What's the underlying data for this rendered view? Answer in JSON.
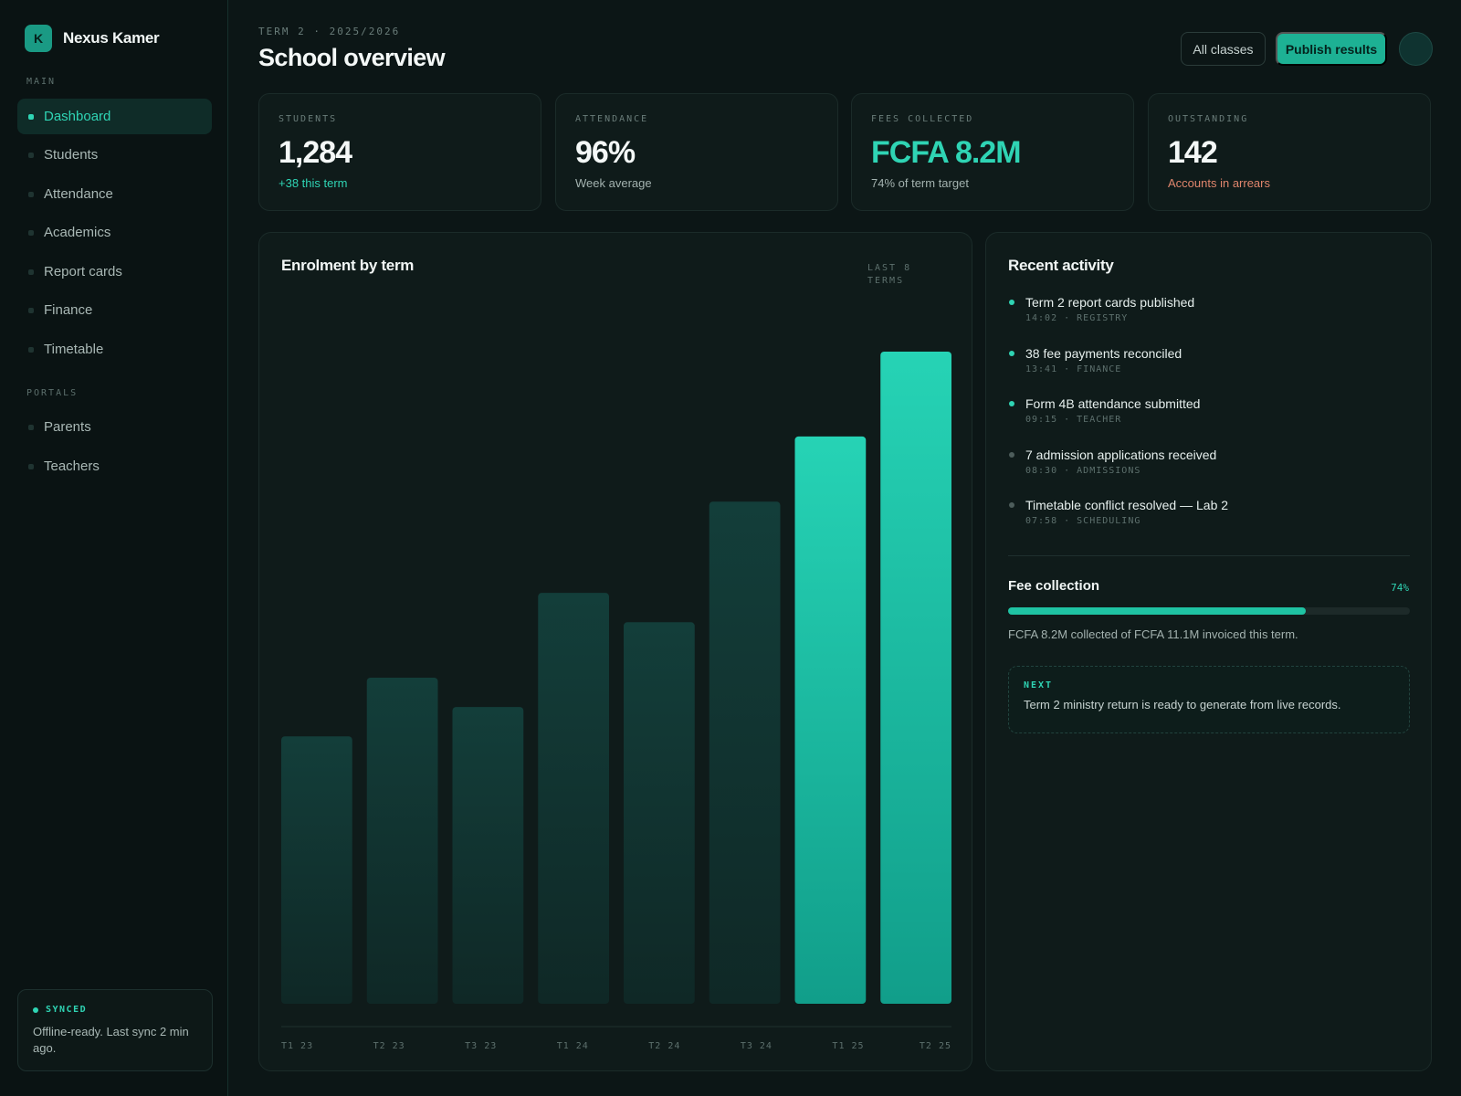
{
  "app": {
    "logo_letter": "K",
    "name": "Nexus Kamer"
  },
  "sidebar": {
    "sections": [
      {
        "title": "MAIN",
        "items": [
          "Dashboard",
          "Students",
          "Attendance",
          "Academics",
          "Report cards",
          "Finance",
          "Timetable"
        ]
      },
      {
        "title": "PORTALS",
        "items": [
          "Parents",
          "Teachers"
        ]
      }
    ],
    "active_item": "Dashboard",
    "sync": {
      "status": "SYNCED",
      "text": "Offline-ready. Last sync 2 min ago."
    }
  },
  "header": {
    "term": "TERM 2 · 2025/2026",
    "title": "School overview",
    "filter_button": "All classes",
    "primary_button": "Publish results"
  },
  "stats": [
    {
      "label": "STUDENTS",
      "value": "1,284",
      "sub": "+38 this term"
    },
    {
      "label": "ATTENDANCE",
      "value": "96%",
      "sub": "Week average"
    },
    {
      "label": "FEES COLLECTED",
      "value": "FCFA 8.2M",
      "sub": "74% of term target"
    },
    {
      "label": "OUTSTANDING",
      "value": "142",
      "sub": "Accounts in arrears"
    }
  ],
  "chart": {
    "title": "Enrolment by term",
    "range_label": "LAST 8 TERMS",
    "colors": {
      "muted": "#123b37",
      "highlight": "#22ccb0"
    }
  },
  "chart_data": {
    "type": "bar",
    "title": "Enrolment by term",
    "categories": [
      "T1 23",
      "T2 23",
      "T3 23",
      "T1 24",
      "T2 24",
      "T3 24",
      "T1 25",
      "T2 25"
    ],
    "values": [
      41,
      50,
      45.5,
      63,
      58.5,
      77,
      87,
      100
    ],
    "highlighted": [
      "T1 25",
      "T2 25"
    ],
    "ylim": [
      0,
      100
    ],
    "grid": false,
    "legend": "none"
  },
  "activity": {
    "title": "Recent activity",
    "items": [
      {
        "text": "Term 2 report cards published",
        "meta": "14:02 · REGISTRY",
        "highlight": true
      },
      {
        "text": "38 fee payments reconciled",
        "meta": "13:41 · FINANCE",
        "highlight": true
      },
      {
        "text": "Form 4B attendance submitted",
        "meta": "09:15 · TEACHER",
        "highlight": true
      },
      {
        "text": "7 admission applications received",
        "meta": "08:30 · ADMISSIONS",
        "highlight": false
      },
      {
        "text": "Timetable conflict resolved — Lab 2",
        "meta": "07:58 · SCHEDULING",
        "highlight": false
      }
    ]
  },
  "fees": {
    "title": "Fee collection",
    "percent_label": "74%",
    "progress": 0.74,
    "text": "FCFA 8.2M collected of FCFA 11.1M invoiced this term."
  },
  "next": {
    "label": "NEXT",
    "text": "Term 2 ministry return is ready to generate from live records."
  }
}
